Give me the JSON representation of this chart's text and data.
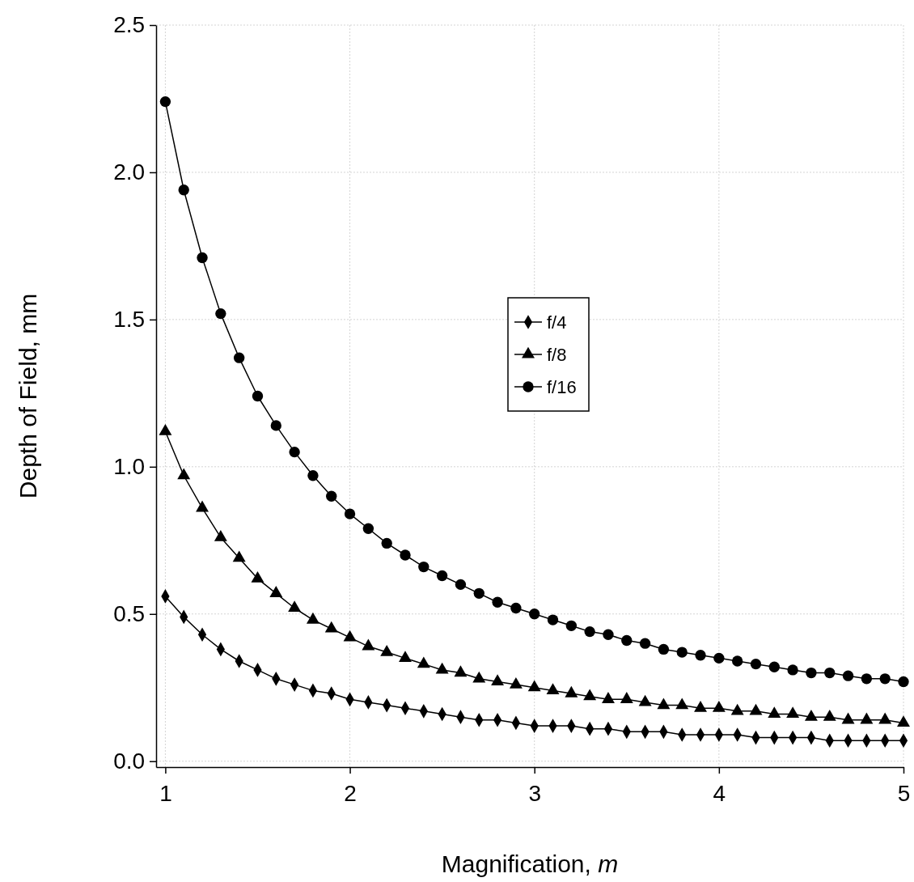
{
  "chart_data": {
    "type": "line",
    "xlabel": "Magnification, m",
    "ylabel": "Depth of Field, mm",
    "x": [
      1,
      1.1,
      1.2,
      1.3,
      1.4,
      1.5,
      1.6,
      1.7,
      1.8,
      1.9,
      2,
      2.1,
      2.2,
      2.3,
      2.4,
      2.5,
      2.6,
      2.7,
      2.8,
      2.9,
      3,
      3.1,
      3.2,
      3.3,
      3.4,
      3.5,
      3.6,
      3.7,
      3.8,
      3.9,
      4,
      4.1,
      4.2,
      4.3,
      4.4,
      4.5,
      4.6,
      4.7,
      4.8,
      4.9,
      5
    ],
    "series": [
      {
        "name": "f/4",
        "color": "#000000",
        "marker": "diamond",
        "values": [
          0.56,
          0.49,
          0.43,
          0.38,
          0.34,
          0.31,
          0.28,
          0.26,
          0.24,
          0.23,
          0.21,
          0.2,
          0.19,
          0.18,
          0.17,
          0.16,
          0.15,
          0.14,
          0.14,
          0.13,
          0.12,
          0.12,
          0.12,
          0.11,
          0.11,
          0.1,
          0.1,
          0.1,
          0.09,
          0.09,
          0.09,
          0.09,
          0.08,
          0.08,
          0.08,
          0.08,
          0.07,
          0.07,
          0.07,
          0.07,
          0.07
        ]
      },
      {
        "name": "f/8",
        "color": "#000000",
        "marker": "triangle",
        "values": [
          1.12,
          0.97,
          0.86,
          0.76,
          0.69,
          0.62,
          0.57,
          0.52,
          0.48,
          0.45,
          0.42,
          0.39,
          0.37,
          0.35,
          0.33,
          0.31,
          0.3,
          0.28,
          0.27,
          0.26,
          0.25,
          0.24,
          0.23,
          0.22,
          0.21,
          0.21,
          0.2,
          0.19,
          0.19,
          0.18,
          0.18,
          0.17,
          0.17,
          0.16,
          0.16,
          0.15,
          0.15,
          0.14,
          0.14,
          0.14,
          0.13
        ]
      },
      {
        "name": "f/16",
        "color": "#000000",
        "marker": "circle",
        "values": [
          2.24,
          1.94,
          1.71,
          1.52,
          1.37,
          1.24,
          1.14,
          1.05,
          0.97,
          0.9,
          0.84,
          0.79,
          0.74,
          0.7,
          0.66,
          0.63,
          0.6,
          0.57,
          0.54,
          0.52,
          0.5,
          0.48,
          0.46,
          0.44,
          0.43,
          0.41,
          0.4,
          0.38,
          0.37,
          0.36,
          0.35,
          0.34,
          0.33,
          0.32,
          0.31,
          0.3,
          0.3,
          0.29,
          0.28,
          0.28,
          0.27
        ]
      }
    ],
    "xlim": [
      0.95,
      5
    ],
    "xticks": [
      1,
      2,
      3,
      4,
      5
    ],
    "ylim": [
      -0.02,
      2.5
    ],
    "yticks": [
      {
        "value": 0,
        "label": "0.0"
      },
      {
        "value": 0.5,
        "label": "0.5"
      },
      {
        "value": 1,
        "label": "1.0"
      },
      {
        "value": 1.5,
        "label": "1.5"
      },
      {
        "value": 2,
        "label": "2.0"
      },
      {
        "value": 2.5,
        "label": "2.5"
      }
    ],
    "grid": true,
    "legend": "center",
    "line_style": "solid"
  }
}
